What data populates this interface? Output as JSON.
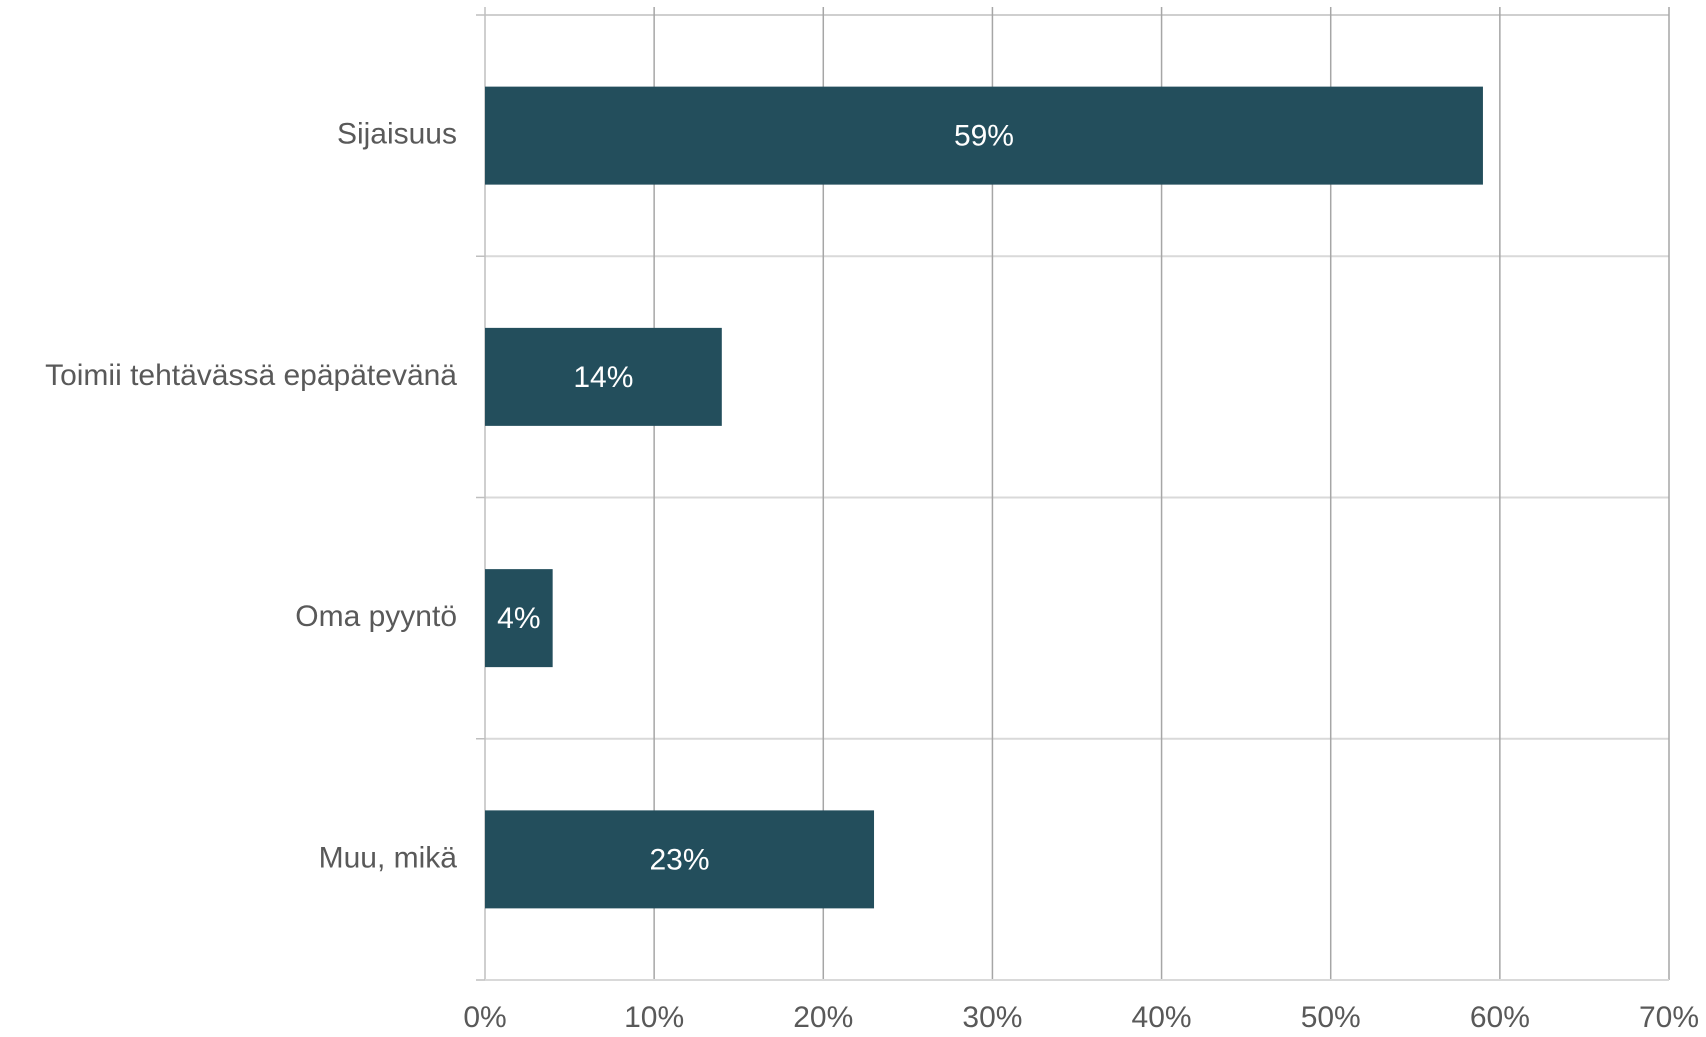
{
  "chart_data": {
    "type": "bar",
    "orientation": "horizontal",
    "categories": [
      "Sijaisuus",
      "Toimii tehtävässä epäpätevänä",
      "Oma pyyntö",
      "Muu, mikä"
    ],
    "values": [
      59,
      14,
      4,
      23
    ],
    "value_labels": [
      "59%",
      "14%",
      "4%",
      "23%"
    ],
    "color": "#234e5c",
    "xlim": [
      0,
      70
    ],
    "xticks": [
      {
        "value": 0,
        "label": "0%"
      },
      {
        "value": 10,
        "label": "10%"
      },
      {
        "value": 20,
        "label": "20%"
      },
      {
        "value": 30,
        "label": "30%"
      },
      {
        "value": 40,
        "label": "40%"
      },
      {
        "value": 50,
        "label": "50%"
      },
      {
        "value": 60,
        "label": "60%"
      },
      {
        "value": 70,
        "label": "70%"
      }
    ],
    "grid": true
  }
}
